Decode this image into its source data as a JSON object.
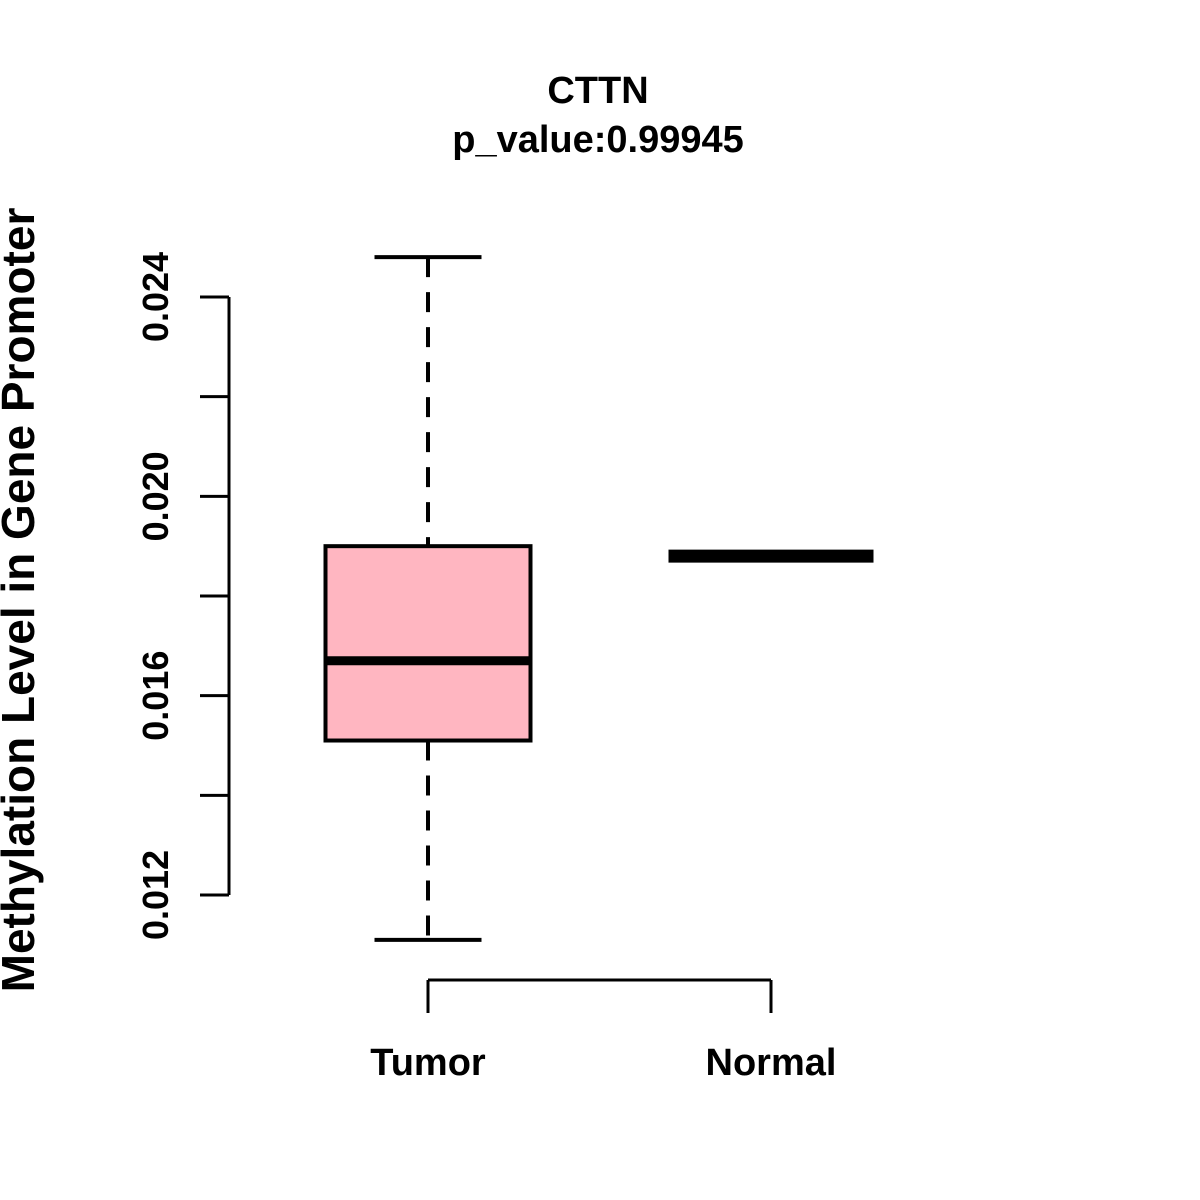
{
  "chart_data": {
    "type": "boxplot",
    "title": "CTTN",
    "subtitle": "p_value:0.99945",
    "p_value": 0.99945,
    "ylabel": "Methylation Level in Gene Promoter",
    "xlabel": "",
    "categories": [
      "Tumor",
      "Normal"
    ],
    "series": [
      {
        "name": "Tumor",
        "lower_whisker": 0.0111,
        "q1": 0.0151,
        "median": 0.0167,
        "q3": 0.019,
        "upper_whisker": 0.0248,
        "fill": "#FFB6C1"
      },
      {
        "name": "Normal",
        "lower_whisker": 0.0188,
        "q1": 0.0188,
        "median": 0.0188,
        "q3": 0.0188,
        "upper_whisker": 0.0188,
        "fill": "#FFB6C1"
      }
    ],
    "y_axis": {
      "min": 0.012,
      "max": 0.024,
      "tick_step": 0.002,
      "ticks": [
        {
          "value": 0.012,
          "label": "0.012"
        },
        {
          "value": 0.014,
          "label": ""
        },
        {
          "value": 0.016,
          "label": "0.016"
        },
        {
          "value": 0.018,
          "label": ""
        },
        {
          "value": 0.02,
          "label": "0.020"
        },
        {
          "value": 0.022,
          "label": ""
        },
        {
          "value": 0.024,
          "label": "0.024"
        }
      ]
    },
    "colors": {
      "line": "#000000",
      "box_fill": "#FFB6C1",
      "background": "#FFFFFF"
    },
    "legend": "none",
    "grid": false
  }
}
